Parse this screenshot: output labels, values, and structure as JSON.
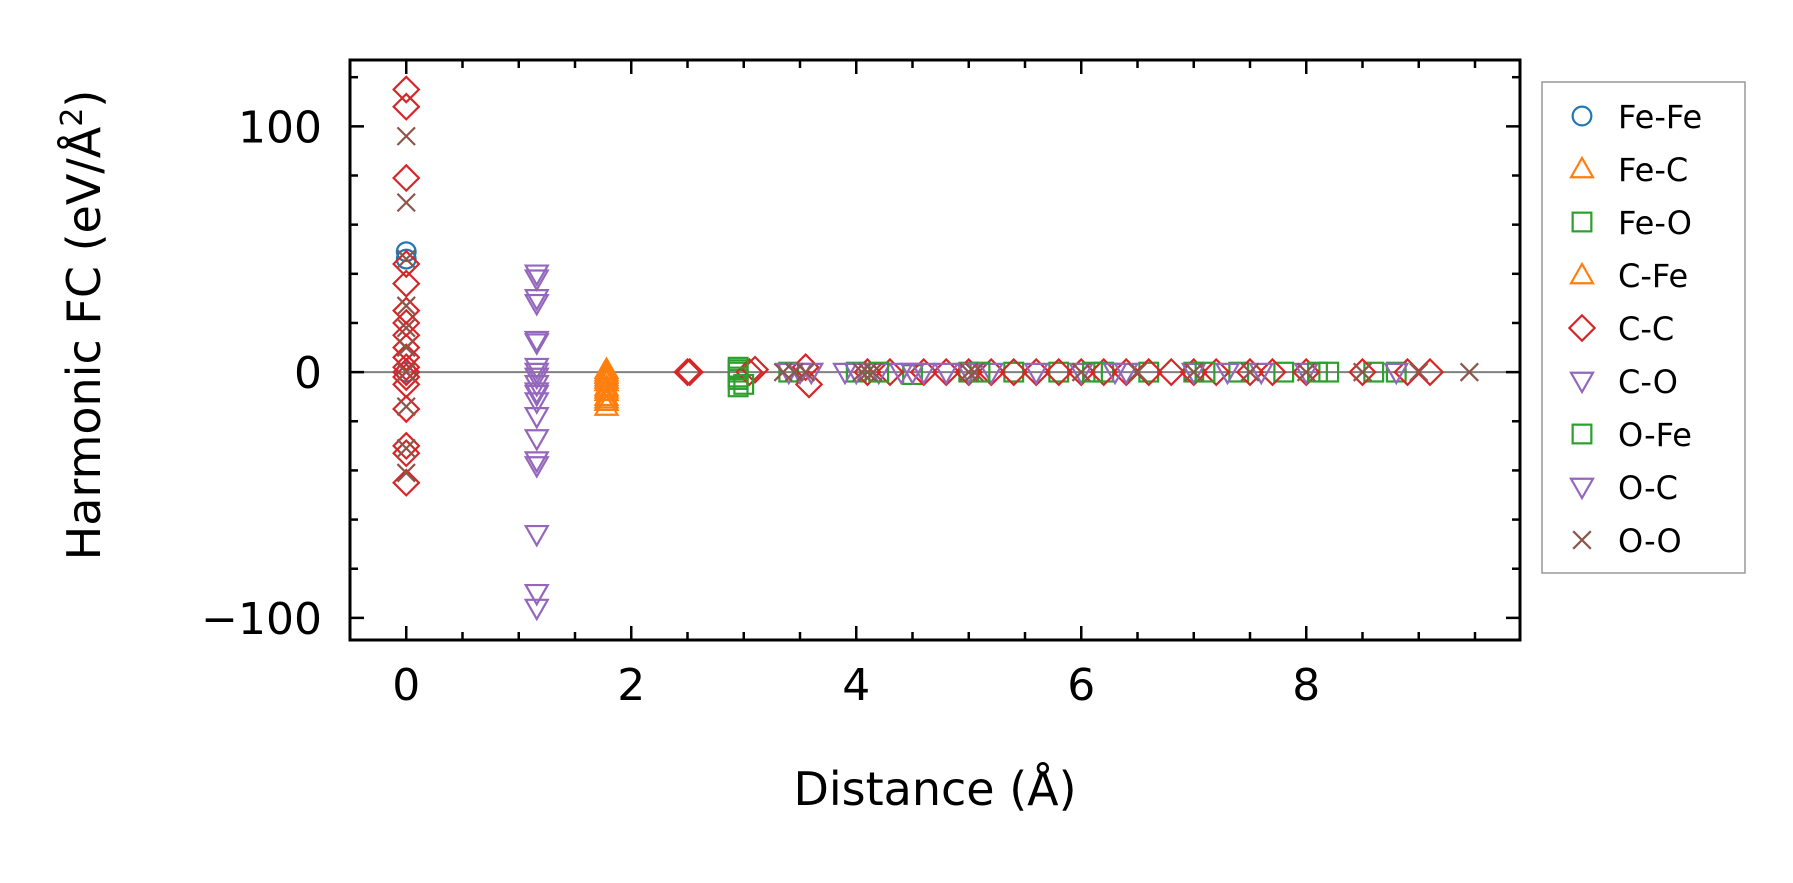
{
  "chart_data": {
    "type": "scatter",
    "title": "",
    "xlabel": "Distance (Å)",
    "ylabel": "Harmonic FC (eV/Å",
    "ylabel_sup": "2",
    "ylabel_close": ")",
    "xlim": [
      -0.5,
      9.9
    ],
    "ylim": [
      -109,
      127
    ],
    "xticks": [
      0,
      2,
      4,
      6,
      8
    ],
    "yticks": [
      -100,
      0,
      100
    ],
    "xtick_labels": [
      "0",
      "2",
      "4",
      "6",
      "8"
    ],
    "ytick_labels": [
      "−100",
      "0",
      "100"
    ],
    "zero_line": true,
    "grid": false,
    "legend_position": "outside-right",
    "series": [
      {
        "name": "Fe-Fe",
        "marker": "circle",
        "color": "#1f77b4",
        "x": [
          0,
          0,
          0
        ],
        "y": [
          49,
          46,
          0
        ]
      },
      {
        "name": "Fe-C",
        "marker": "triangle-up",
        "color": "#ff7f0e",
        "x": [
          1.78,
          1.78,
          1.78,
          1.78,
          1.78,
          1.78,
          1.78,
          1.78
        ],
        "y": [
          0,
          -2,
          -4,
          -6,
          -8,
          -10,
          -12,
          -14
        ]
      },
      {
        "name": "Fe-O",
        "marker": "square",
        "color": "#2ca02c",
        "x": [
          2.95,
          2.95,
          2.95,
          2.95,
          3.4,
          4.0,
          4.5,
          5.0,
          5.4,
          5.8,
          6.2,
          6.6,
          7.0,
          7.4,
          7.8,
          8.2,
          8.6,
          8.8
        ],
        "y": [
          2,
          0,
          -3,
          -6,
          0,
          0,
          -1,
          0,
          0,
          0,
          0,
          0,
          0,
          0,
          0,
          0,
          0,
          0
        ]
      },
      {
        "name": "C-Fe",
        "marker": "triangle-up",
        "color": "#ff7f0e",
        "x": [
          1.78,
          1.78,
          1.78,
          1.78,
          1.78
        ],
        "y": [
          1,
          -1,
          -3,
          -7,
          -11
        ]
      },
      {
        "name": "C-C",
        "marker": "diamond",
        "color": "#d62728",
        "x": [
          0,
          0,
          0,
          0,
          0,
          0,
          0,
          0,
          0,
          0,
          0,
          0,
          0,
          0,
          0,
          0,
          0,
          0,
          2.5,
          2.52,
          3.05,
          3.1,
          3.55,
          3.58,
          4.1,
          4.3,
          4.6,
          4.8,
          5.0,
          5.2,
          5.4,
          5.6,
          5.8,
          6.0,
          6.2,
          6.4,
          6.6,
          6.8,
          7.0,
          7.2,
          7.5,
          7.7,
          8.0,
          8.5,
          8.9,
          9.1
        ],
        "y": [
          115,
          108,
          79,
          44,
          36,
          25,
          20,
          15,
          10,
          6,
          2,
          0,
          -2,
          -5,
          -15,
          -30,
          -33,
          -45,
          0,
          0,
          0,
          1,
          2,
          -5,
          0,
          0,
          0,
          0,
          0,
          0,
          0,
          0,
          0,
          0,
          0,
          0,
          0,
          0,
          0,
          0,
          0,
          0,
          0,
          0,
          0,
          0
        ]
      },
      {
        "name": "C-O",
        "marker": "triangle-down",
        "color": "#9467bd",
        "x": [
          1.16,
          1.16,
          1.16,
          1.16,
          1.16,
          1.16,
          1.16,
          1.16,
          1.16,
          1.16,
          1.16,
          1.16,
          1.16,
          1.16,
          1.16,
          3.4,
          3.6,
          3.9,
          4.2,
          4.4,
          4.6,
          4.8,
          5.2,
          5.6,
          6.0,
          6.4,
          7.0,
          7.6,
          8.0,
          8.8
        ],
        "y": [
          40,
          30,
          13,
          2,
          0,
          -2,
          -8,
          -12,
          -18,
          -27,
          -38,
          -66,
          -90,
          -96,
          -5,
          0,
          0,
          0,
          0,
          0,
          0,
          0,
          0,
          0,
          0,
          0,
          0,
          0,
          0,
          0
        ]
      },
      {
        "name": "O-Fe",
        "marker": "square",
        "color": "#2ca02c",
        "x": [
          2.95,
          2.95,
          3.0,
          4.2,
          5.1,
          6.1,
          7.1,
          8.1
        ],
        "y": [
          1,
          -2,
          -5,
          0,
          0,
          0,
          0,
          0
        ]
      },
      {
        "name": "O-C",
        "marker": "triangle-down",
        "color": "#9467bd",
        "x": [
          1.16,
          1.16,
          1.16,
          1.16,
          1.16,
          3.5,
          4.0,
          4.5,
          5.0,
          6.3,
          7.3
        ],
        "y": [
          38,
          28,
          12,
          -9,
          -36,
          0,
          0,
          0,
          0,
          0,
          0
        ]
      },
      {
        "name": "O-O",
        "marker": "x",
        "color": "#8c564b",
        "x": [
          0,
          0,
          0,
          0,
          0,
          0,
          0,
          0,
          0,
          0,
          3.35,
          3.45,
          3.55,
          4.05,
          4.1,
          4.15,
          5.0,
          5.05,
          6.0,
          6.5,
          7.0,
          7.5,
          8.0,
          8.5,
          9.0,
          9.45
        ],
        "y": [
          96,
          69,
          46,
          27,
          18,
          10,
          0,
          -14,
          -31,
          -41,
          0,
          0,
          0,
          0,
          0,
          0,
          0,
          0,
          0,
          0,
          0,
          0,
          0,
          0,
          0,
          0
        ]
      }
    ]
  }
}
